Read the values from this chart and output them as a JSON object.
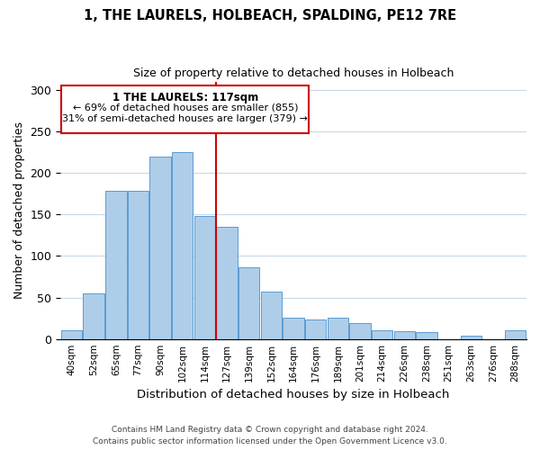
{
  "title": "1, THE LAURELS, HOLBEACH, SPALDING, PE12 7RE",
  "subtitle": "Size of property relative to detached houses in Holbeach",
  "xlabel": "Distribution of detached houses by size in Holbeach",
  "ylabel": "Number of detached properties",
  "bar_labels": [
    "40sqm",
    "52sqm",
    "65sqm",
    "77sqm",
    "90sqm",
    "102sqm",
    "114sqm",
    "127sqm",
    "139sqm",
    "152sqm",
    "164sqm",
    "176sqm",
    "189sqm",
    "201sqm",
    "214sqm",
    "226sqm",
    "238sqm",
    "251sqm",
    "263sqm",
    "276sqm",
    "288sqm"
  ],
  "bar_values": [
    10,
    55,
    178,
    178,
    220,
    225,
    148,
    135,
    86,
    57,
    26,
    24,
    26,
    19,
    10,
    9,
    8,
    0,
    4,
    0,
    10
  ],
  "bar_color": "#aecde8",
  "bar_edge_color": "#5b9bd5",
  "marker_index": 6.5,
  "marker_label": "1 THE LAURELS: 117sqm",
  "annotation_line1": "← 69% of detached houses are smaller (855)",
  "annotation_line2": "31% of semi-detached houses are larger (379) →",
  "marker_line_color": "#cc0000",
  "annotation_box_edge_color": "#cc0000",
  "ylim": [
    0,
    310
  ],
  "yticks": [
    0,
    50,
    100,
    150,
    200,
    250,
    300
  ],
  "footer1": "Contains HM Land Registry data © Crown copyright and database right 2024.",
  "footer2": "Contains public sector information licensed under the Open Government Licence v3.0."
}
